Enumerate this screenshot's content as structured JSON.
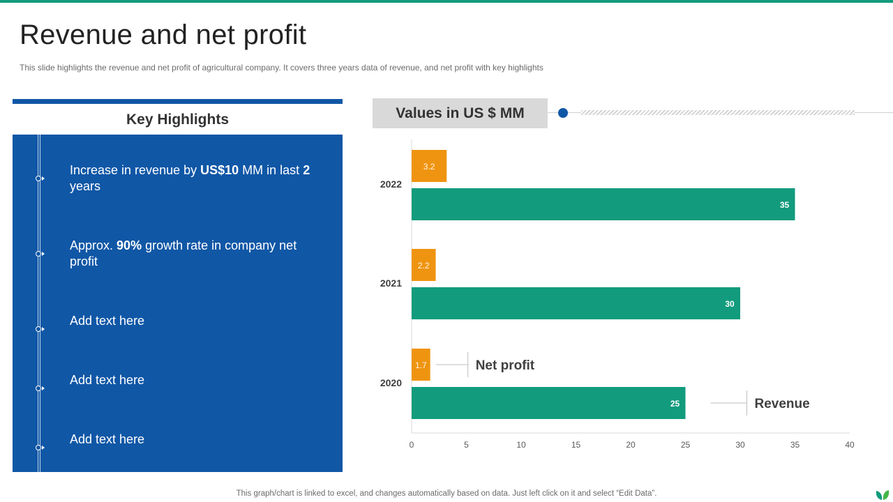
{
  "page": {
    "title": "Revenue and net profit",
    "subtitle": "This slide highlights the revenue and net profit of agricultural company. It covers three years data of revenue, and net profit with key highlights",
    "footer_note": "This graph/chart is linked to excel,  and changes automatically based on data. Just left click on it and select “Edit Data”."
  },
  "colors": {
    "accent_teal": "#129b7d",
    "accent_orange": "#ef9410",
    "panel_blue": "#1057a6"
  },
  "key_highlights": {
    "heading": "Key Highlights",
    "items": [
      {
        "parts": [
          "Increase in revenue by ",
          "US$10",
          " MM  in last ",
          "2",
          " years"
        ]
      },
      {
        "parts": [
          "Approx. ",
          "90%",
          " growth rate in company net profit"
        ]
      },
      {
        "parts": [
          "Add text here"
        ]
      },
      {
        "parts": [
          "Add text here"
        ]
      },
      {
        "parts": [
          "Add text here"
        ]
      }
    ]
  },
  "chart_header": {
    "label": "Values in US $ MM"
  },
  "chart_data": {
    "type": "bar",
    "orientation": "horizontal",
    "categories": [
      "2022",
      "2021",
      "2020"
    ],
    "series": [
      {
        "name": "Net profit",
        "values": [
          3.2,
          2.2,
          1.7
        ],
        "color": "#ef9410"
      },
      {
        "name": "Revenue",
        "values": [
          35,
          30,
          25
        ],
        "color": "#129b7d"
      }
    ],
    "x_ticks": [
      "0",
      "5",
      "10",
      "15",
      "20",
      "25",
      "30",
      "35",
      "40"
    ],
    "xlim": [
      0,
      40
    ],
    "grid": false,
    "legend": "inline-callouts-right-of-2020-bars"
  }
}
